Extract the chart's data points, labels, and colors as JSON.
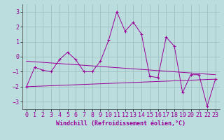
{
  "x": [
    0,
    1,
    2,
    3,
    4,
    5,
    6,
    7,
    8,
    9,
    10,
    11,
    12,
    13,
    14,
    15,
    16,
    17,
    18,
    19,
    20,
    21,
    22,
    23
  ],
  "windchill": [
    -2.0,
    -0.7,
    -0.9,
    -1.0,
    -0.2,
    0.3,
    -0.2,
    -1.0,
    -1.0,
    -0.3,
    1.1,
    3.0,
    1.7,
    2.3,
    1.5,
    -1.3,
    -1.4,
    1.3,
    0.7,
    -2.4,
    -1.2,
    -1.2,
    -3.3,
    -1.5
  ],
  "trend1_x": [
    0,
    23
  ],
  "trend1_y": [
    -0.3,
    -1.2
  ],
  "trend2_x": [
    0,
    23
  ],
  "trend2_y": [
    -2.0,
    -1.5
  ],
  "line_color": "#990099",
  "bg_color": "#bbdddd",
  "grid_color": "#99bbbb",
  "xlabel": "Windchill (Refroidissement éolien,°C)",
  "ylim": [
    -3.5,
    3.5
  ],
  "xlim": [
    -0.5,
    23.5
  ],
  "yticks": [
    -3,
    -2,
    -1,
    0,
    1,
    2,
    3
  ],
  "xticks": [
    0,
    1,
    2,
    3,
    4,
    5,
    6,
    7,
    8,
    9,
    10,
    11,
    12,
    13,
    14,
    15,
    16,
    17,
    18,
    19,
    20,
    21,
    22,
    23
  ],
  "xlabel_fontsize": 6,
  "tick_fontsize": 6,
  "marker": "+"
}
